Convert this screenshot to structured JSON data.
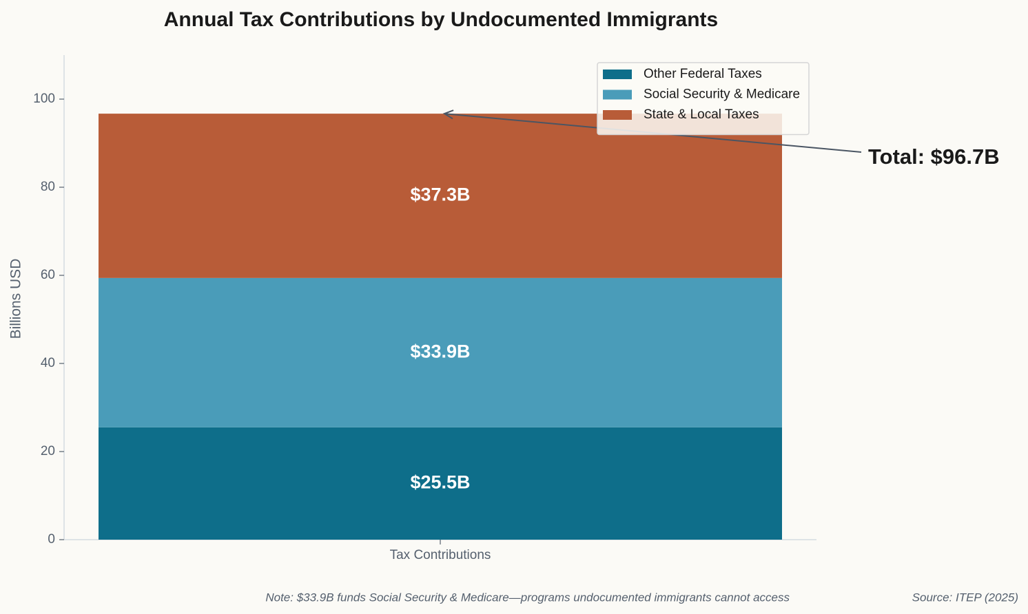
{
  "chart_data": {
    "type": "stacked_bar",
    "title": "Annual Tax Contributions by Undocumented Immigrants",
    "y_label": "Billions USD",
    "categories": [
      "Tax Contributions"
    ],
    "series": [
      {
        "name": "Other Federal Taxes",
        "color": "#0e6e8a",
        "values": [
          25.5
        ],
        "value_labels": [
          "$25.5B"
        ]
      },
      {
        "name": "Social Security & Medicare",
        "color": "#4a9cb9",
        "values": [
          33.9
        ],
        "value_labels": [
          "$33.9B"
        ]
      },
      {
        "name": "State & Local Taxes",
        "color": "#b85c38",
        "values": [
          37.3
        ],
        "value_labels": [
          "$37.3B"
        ]
      }
    ],
    "ylim": [
      0,
      110
    ],
    "yticks": [
      0,
      20,
      40,
      60,
      80,
      100
    ],
    "legend": "upper right",
    "annotation": "Total: $96.7B",
    "note": "Note: $33.9B funds Social Security & Medicare—programs undocumented immigrants cannot access",
    "source": "Source: ITEP (2025)"
  }
}
